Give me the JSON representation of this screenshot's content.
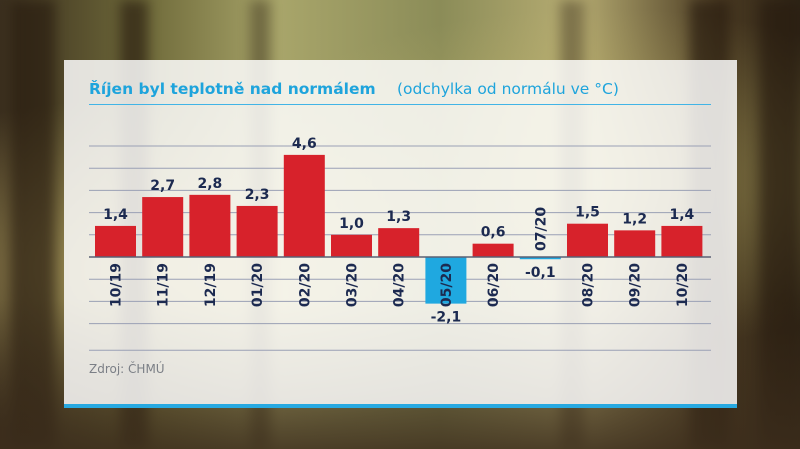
{
  "chart_data": {
    "type": "bar",
    "title": "Říjen byl teplotně nad normálem",
    "subtitle": "(odchylka od normálu ve °C)",
    "categories": [
      "10/19",
      "11/19",
      "12/19",
      "01/20",
      "02/20",
      "03/20",
      "04/20",
      "05/20",
      "06/20",
      "07/20",
      "08/20",
      "09/20",
      "10/20"
    ],
    "values": [
      1.4,
      2.7,
      2.8,
      2.3,
      4.6,
      1.0,
      1.3,
      -2.1,
      0.6,
      -0.1,
      1.5,
      1.2,
      1.4
    ],
    "value_labels": [
      "1,4",
      "2,7",
      "2,8",
      "2,3",
      "4,6",
      "1,0",
      "1,3",
      "-2,1",
      "0,6",
      "-0,1",
      "1,5",
      "1,2",
      "1,4"
    ],
    "ylim": [
      -3,
      5
    ],
    "grid": true,
    "legend": "none",
    "colors": {
      "positive": "#d7222b",
      "negative": "#1fa8e0",
      "accent": "#1ea4dc",
      "label": "#1c2a50"
    }
  },
  "source": "Zdroj: ČHMÚ"
}
